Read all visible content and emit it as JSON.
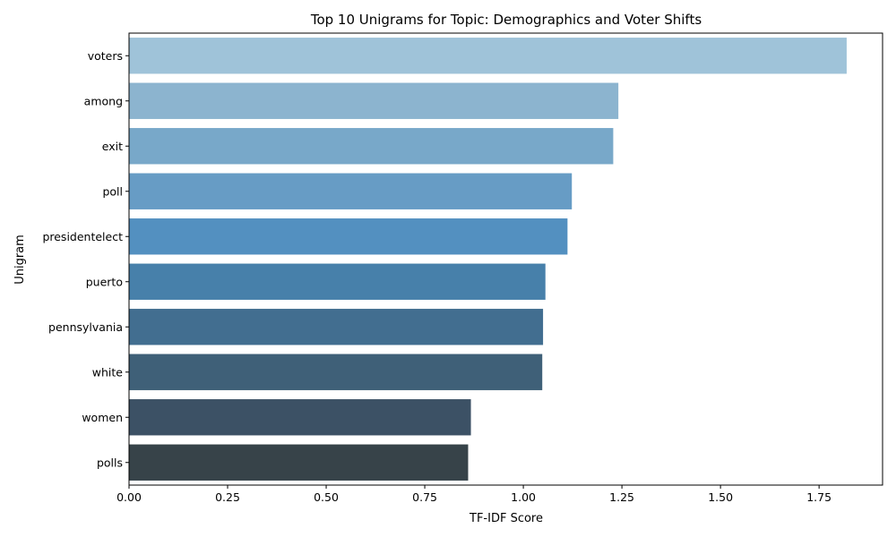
{
  "chart_data": {
    "type": "bar",
    "orientation": "horizontal",
    "title": "Top 10 Unigrams for Topic: Demographics and Voter Shifts",
    "xlabel": "TF-IDF Score",
    "ylabel": "Unigram",
    "categories": [
      "voters",
      "among",
      "exit",
      "poll",
      "presidentelect",
      "puerto",
      "pennsylvania",
      "white",
      "women",
      "polls"
    ],
    "values": [
      1.82,
      1.241,
      1.228,
      1.123,
      1.112,
      1.056,
      1.05,
      1.048,
      0.867,
      0.86
    ],
    "xlim": [
      0,
      1.911
    ],
    "xticks": [
      0.0,
      0.25,
      0.5,
      0.75,
      1.0,
      1.25,
      1.5,
      1.75
    ],
    "xtick_labels": [
      "0.00",
      "0.25",
      "0.50",
      "0.75",
      "1.00",
      "1.25",
      "1.50",
      "1.75"
    ],
    "grid": false,
    "colors": [
      "#9fc3d9",
      "#8cb4cf",
      "#78a8c9",
      "#679cc5",
      "#5390c0",
      "#4780aa",
      "#426e90",
      "#3f6078",
      "#3c5165",
      "#374349"
    ]
  }
}
